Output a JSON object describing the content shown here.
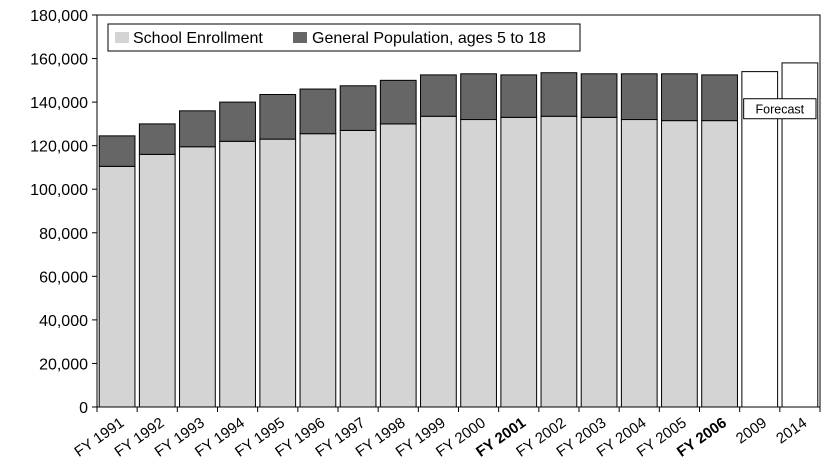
{
  "chart_data": {
    "type": "bar",
    "stacked": true,
    "categories": [
      "FY 1991",
      "FY 1992",
      "FY 1993",
      "FY 1994",
      "FY 1995",
      "FY 1996",
      "FY 1997",
      "FY 1998",
      "FY 1999",
      "FY 2000",
      "FY 2001",
      "FY 2002",
      "FY 2003",
      "FY 2004",
      "FY 2005",
      "FY 2006",
      "2009",
      "2014"
    ],
    "bold_categories": [
      "FY 2001",
      "FY 2006"
    ],
    "series": [
      {
        "name": "School Enrollment",
        "color": "#d4d4d4",
        "values": [
          110500,
          116000,
          119500,
          122000,
          123000,
          125500,
          127000,
          130000,
          133500,
          132000,
          133000,
          133500,
          133000,
          132000,
          131500,
          131500,
          null,
          null
        ]
      },
      {
        "name": "General Population, ages 5 to 18",
        "color": "#666666",
        "values": [
          14000,
          14000,
          16500,
          18000,
          20500,
          20500,
          20500,
          20000,
          19000,
          21000,
          19500,
          20000,
          20000,
          21000,
          21500,
          21000,
          null,
          null
        ]
      }
    ],
    "forecast": {
      "label": "Forecast",
      "categories": [
        "2009",
        "2014"
      ],
      "values": [
        154000,
        158000
      ],
      "color": "#ffffff"
    },
    "ylim": [
      0,
      180000
    ],
    "yticks": [
      "0",
      "20,000",
      "40,000",
      "60,000",
      "80,000",
      "100,000",
      "120,000",
      "140,000",
      "160,000",
      "180,000"
    ],
    "ytick_values": [
      0,
      20000,
      40000,
      60000,
      80000,
      100000,
      120000,
      140000,
      160000,
      180000
    ],
    "xlabel": "",
    "ylabel": "",
    "title": "",
    "grid": false,
    "legend": "top-left"
  }
}
